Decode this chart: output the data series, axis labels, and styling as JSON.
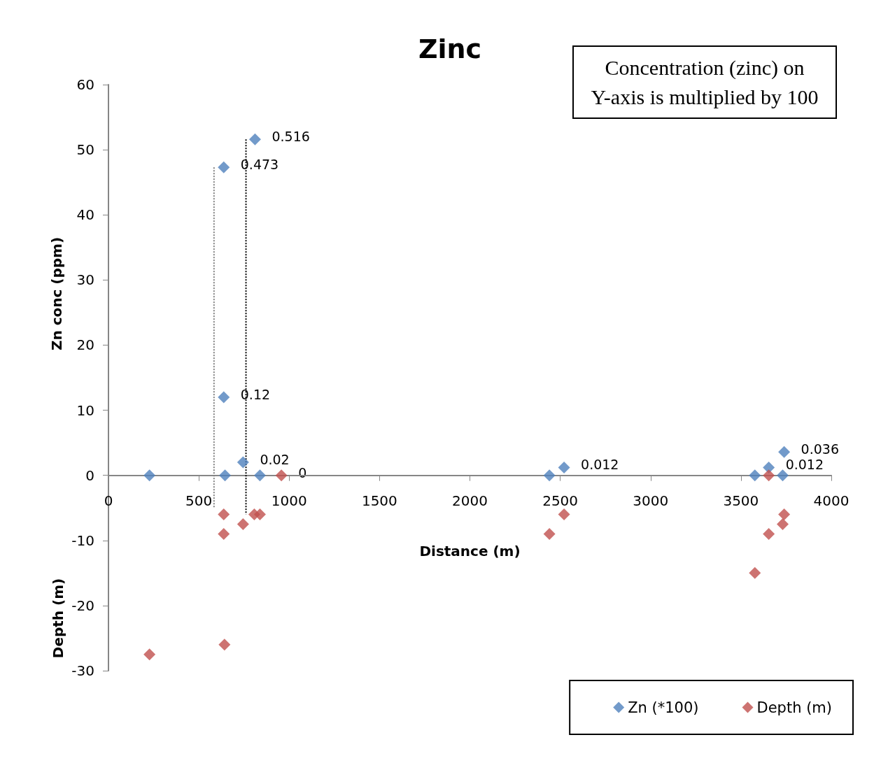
{
  "chart_data": {
    "type": "scatter",
    "title": "Zinc",
    "xlabel": "Distance (m)",
    "ylabel": "Zn conc (ppm)",
    "annotations": [
      "Depth (m)",
      "Concentration (zinc) on\nY-axis is multiplied by 100",
      {
        "text": "0.473",
        "x": 638,
        "y": 47.3
      },
      {
        "text": "0.516",
        "x": 811,
        "y": 51.6
      },
      {
        "text": "0.12",
        "x": 638,
        "y": 12
      },
      {
        "text": "0.02",
        "x": 745,
        "y": 2
      },
      {
        "text": "0.012",
        "x": 2521,
        "y": 1.2
      },
      {
        "text": "0.012",
        "x": 3654,
        "y": 1.2
      },
      {
        "text": "0.036",
        "x": 3739,
        "y": 3.6
      },
      {
        "text": "0",
        "x": 957,
        "y": 0
      }
    ],
    "xlim": [
      0,
      4000
    ],
    "xticks": [
      0,
      500,
      1000,
      1500,
      2000,
      2500,
      3000,
      3500,
      4000
    ],
    "ylim": [
      -30,
      60
    ],
    "yticks": [
      -30,
      -20,
      -10,
      0,
      10,
      20,
      30,
      40,
      50,
      60
    ],
    "grid": false,
    "legend": "bottom right",
    "marker": "diamond",
    "series": [
      {
        "name": "Zn (*100)",
        "color": "#4f81bd",
        "x": [
          227,
          638,
          811,
          638,
          645,
          745,
          838,
          2440,
          2521,
          3577,
          3654,
          3739,
          3731
        ],
        "values": [
          0,
          47.3,
          51.6,
          12,
          0,
          2,
          0,
          0,
          1.2,
          0,
          1.2,
          3.6,
          0
        ]
      },
      {
        "name": "Depth (m)",
        "color": "#c0504d",
        "x": [
          227,
          642,
          638,
          638,
          745,
          807,
          838,
          957,
          2440,
          2521,
          3577,
          3654,
          3654,
          3731,
          3739
        ],
        "values": [
          -27.5,
          -26,
          -6,
          -9,
          -7.5,
          -6,
          -6,
          0,
          -9,
          -6,
          -15,
          0,
          -9,
          -7.5,
          -6
        ]
      },
      {
        "type": "line",
        "color": "#7f7f7f",
        "line_style": "dotted",
        "marker": "none",
        "x": [
          584,
          584
        ],
        "values": [
          47.3,
          -5
        ]
      },
      {
        "type": "line",
        "color": "#000000",
        "line_style": "dotted",
        "marker": "none",
        "x": [
          761,
          761
        ],
        "values": [
          51.6,
          -6
        ]
      }
    ]
  }
}
